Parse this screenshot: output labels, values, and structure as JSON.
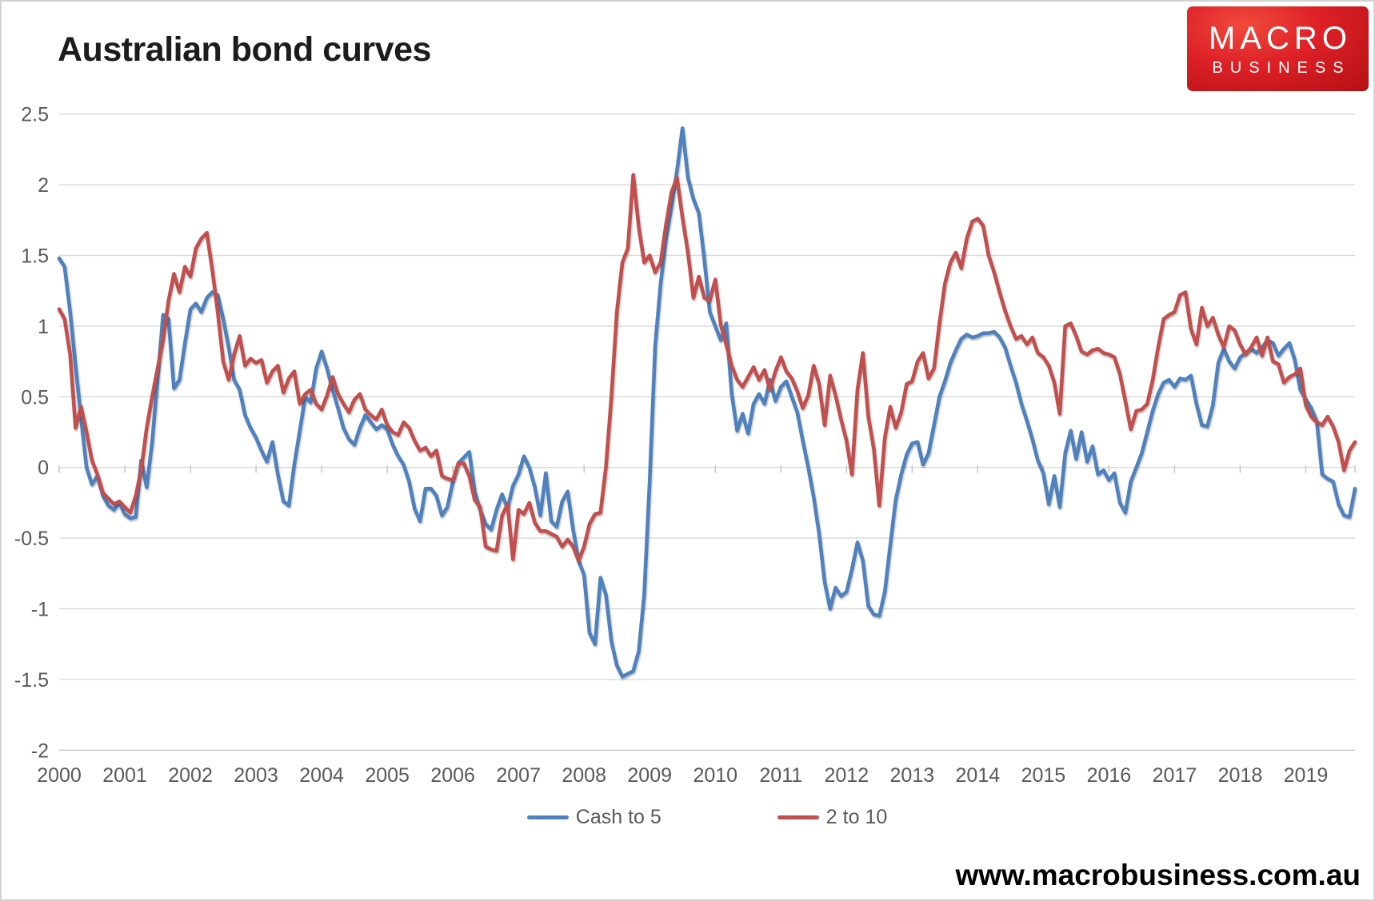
{
  "title": "Australian bond curves",
  "logo": {
    "line1": "MACRO",
    "line2": "BUSINESS",
    "background_color": "#d01217",
    "text_color": "#ffffff"
  },
  "website": "www.macrobusiness.com.au",
  "colors": {
    "series_blue": "#4f81bd",
    "series_red": "#c0504d",
    "gridline": "#d9d9d9",
    "axis_line": "#c3c3c3",
    "axis_text": "#595959",
    "title_text": "#1c1c1c"
  },
  "chart_data": {
    "type": "line",
    "title": "Australian bond curves",
    "xlabel": "",
    "ylabel": "",
    "x_start": "2000-01",
    "x_end": "2019-10",
    "x_step": "1 month",
    "x_tick_labels": [
      "2000",
      "2001",
      "2002",
      "2003",
      "2004",
      "2005",
      "2006",
      "2007",
      "2008",
      "2009",
      "2010",
      "2011",
      "2012",
      "2013",
      "2014",
      "2015",
      "2016",
      "2017",
      "2018",
      "2019"
    ],
    "y_ticks": [
      2.5,
      2,
      1.5,
      1,
      0.5,
      0,
      -0.5,
      -1,
      -1.5,
      -2
    ],
    "y_tick_labels": [
      "2.5",
      "2",
      "1.5",
      "1",
      "0.5",
      "0",
      "-0.5",
      "-1",
      "-1.5",
      "-2"
    ],
    "ylim": [
      -2,
      2.5
    ],
    "grid": true,
    "legend_position": "bottom",
    "series": [
      {
        "name": "Cash to 5",
        "color": "#4f81bd",
        "values": [
          1.48,
          1.42,
          1.1,
          0.72,
          0.35,
          0.0,
          -0.12,
          -0.06,
          -0.2,
          -0.27,
          -0.3,
          -0.25,
          -0.33,
          -0.36,
          -0.35,
          0.05,
          -0.14,
          0.18,
          0.62,
          1.08,
          1.05,
          0.56,
          0.62,
          0.88,
          1.12,
          1.16,
          1.1,
          1.2,
          1.24,
          1.22,
          1.05,
          0.85,
          0.62,
          0.55,
          0.37,
          0.28,
          0.21,
          0.12,
          0.04,
          0.18,
          -0.05,
          -0.24,
          -0.27,
          0.02,
          0.26,
          0.5,
          0.46,
          0.7,
          0.82,
          0.7,
          0.55,
          0.42,
          0.28,
          0.2,
          0.16,
          0.28,
          0.37,
          0.32,
          0.27,
          0.3,
          0.27,
          0.16,
          0.08,
          0.02,
          -0.1,
          -0.29,
          -0.38,
          -0.15,
          -0.15,
          -0.2,
          -0.34,
          -0.28,
          -0.1,
          0.03,
          0.07,
          0.11,
          -0.17,
          -0.3,
          -0.4,
          -0.44,
          -0.3,
          -0.19,
          -0.29,
          -0.13,
          -0.05,
          0.08,
          0.0,
          -0.14,
          -0.34,
          -0.04,
          -0.38,
          -0.42,
          -0.24,
          -0.17,
          -0.44,
          -0.66,
          -0.76,
          -1.17,
          -1.25,
          -0.78,
          -0.9,
          -1.23,
          -1.4,
          -1.48,
          -1.46,
          -1.44,
          -1.3,
          -0.9,
          -0.1,
          0.86,
          1.3,
          1.62,
          1.85,
          2.1,
          2.4,
          2.05,
          1.9,
          1.8,
          1.47,
          1.1,
          1.0,
          0.9,
          1.02,
          0.52,
          0.26,
          0.38,
          0.24,
          0.45,
          0.52,
          0.45,
          0.62,
          0.47,
          0.57,
          0.61,
          0.5,
          0.39,
          0.19,
          0.0,
          -0.21,
          -0.47,
          -0.81,
          -1.0,
          -0.85,
          -0.91,
          -0.88,
          -0.72,
          -0.53,
          -0.66,
          -0.98,
          -1.04,
          -1.05,
          -0.88,
          -0.55,
          -0.23,
          -0.05,
          0.09,
          0.17,
          0.18,
          0.02,
          0.1,
          0.3,
          0.5,
          0.61,
          0.74,
          0.83,
          0.91,
          0.94,
          0.92,
          0.93,
          0.95,
          0.95,
          0.96,
          0.92,
          0.85,
          0.72,
          0.6,
          0.45,
          0.33,
          0.2,
          0.05,
          -0.04,
          -0.26,
          -0.06,
          -0.28,
          0.1,
          0.26,
          0.06,
          0.25,
          0.04,
          0.15,
          -0.05,
          -0.02,
          -0.09,
          -0.04,
          -0.25,
          -0.32,
          -0.1,
          0.0,
          0.1,
          0.25,
          0.4,
          0.52,
          0.6,
          0.62,
          0.57,
          0.63,
          0.62,
          0.65,
          0.45,
          0.3,
          0.29,
          0.44,
          0.74,
          0.84,
          0.75,
          0.7,
          0.78,
          0.81,
          0.84,
          0.81,
          0.85,
          0.9,
          0.88,
          0.79,
          0.84,
          0.88,
          0.76,
          0.55,
          0.48,
          0.42,
          0.33,
          -0.05,
          -0.08,
          -0.1,
          -0.26,
          -0.34,
          -0.35,
          -0.15
        ]
      },
      {
        "name": "2 to 10",
        "color": "#c0504d",
        "values": [
          1.12,
          1.05,
          0.8,
          0.28,
          0.43,
          0.25,
          0.05,
          -0.05,
          -0.18,
          -0.22,
          -0.26,
          -0.24,
          -0.28,
          -0.32,
          -0.2,
          -0.02,
          0.28,
          0.5,
          0.7,
          0.9,
          1.18,
          1.37,
          1.24,
          1.42,
          1.35,
          1.55,
          1.62,
          1.66,
          1.4,
          1.1,
          0.75,
          0.62,
          0.8,
          0.93,
          0.72,
          0.77,
          0.74,
          0.76,
          0.6,
          0.68,
          0.72,
          0.53,
          0.63,
          0.68,
          0.45,
          0.52,
          0.55,
          0.45,
          0.41,
          0.51,
          0.64,
          0.52,
          0.45,
          0.39,
          0.48,
          0.52,
          0.41,
          0.37,
          0.34,
          0.41,
          0.3,
          0.25,
          0.23,
          0.32,
          0.28,
          0.19,
          0.12,
          0.14,
          0.08,
          0.12,
          -0.06,
          -0.08,
          -0.09,
          0.03,
          0.03,
          -0.06,
          -0.23,
          -0.28,
          -0.56,
          -0.58,
          -0.59,
          -0.34,
          -0.26,
          -0.65,
          -0.3,
          -0.33,
          -0.25,
          -0.39,
          -0.45,
          -0.45,
          -0.47,
          -0.49,
          -0.56,
          -0.51,
          -0.56,
          -0.66,
          -0.56,
          -0.4,
          -0.33,
          -0.32,
          0.0,
          0.5,
          1.1,
          1.45,
          1.55,
          2.07,
          1.7,
          1.45,
          1.5,
          1.38,
          1.45,
          1.72,
          1.95,
          2.05,
          1.77,
          1.52,
          1.2,
          1.35,
          1.2,
          1.18,
          1.33,
          1.01,
          0.87,
          0.72,
          0.62,
          0.57,
          0.64,
          0.71,
          0.62,
          0.69,
          0.55,
          0.68,
          0.78,
          0.68,
          0.63,
          0.54,
          0.42,
          0.51,
          0.72,
          0.59,
          0.3,
          0.65,
          0.51,
          0.34,
          0.19,
          -0.05,
          0.55,
          0.81,
          0.36,
          0.13,
          -0.27,
          0.21,
          0.43,
          0.28,
          0.39,
          0.59,
          0.61,
          0.75,
          0.81,
          0.63,
          0.7,
          1.02,
          1.3,
          1.45,
          1.52,
          1.41,
          1.62,
          1.74,
          1.76,
          1.71,
          1.5,
          1.38,
          1.24,
          1.11,
          1.0,
          0.91,
          0.93,
          0.87,
          0.92,
          0.81,
          0.78,
          0.72,
          0.6,
          0.38,
          1.0,
          1.02,
          0.93,
          0.82,
          0.8,
          0.83,
          0.84,
          0.81,
          0.8,
          0.78,
          0.66,
          0.47,
          0.27,
          0.4,
          0.41,
          0.45,
          0.62,
          0.85,
          1.05,
          1.08,
          1.1,
          1.22,
          1.24,
          0.98,
          0.87,
          1.13,
          1.0,
          1.06,
          0.94,
          0.85,
          1.0,
          0.97,
          0.87,
          0.8,
          0.85,
          0.92,
          0.79,
          0.92,
          0.75,
          0.73,
          0.6,
          0.64,
          0.66,
          0.7,
          0.44,
          0.36,
          0.32,
          0.3,
          0.36,
          0.29,
          0.18,
          -0.02,
          0.12,
          0.18
        ]
      }
    ]
  }
}
